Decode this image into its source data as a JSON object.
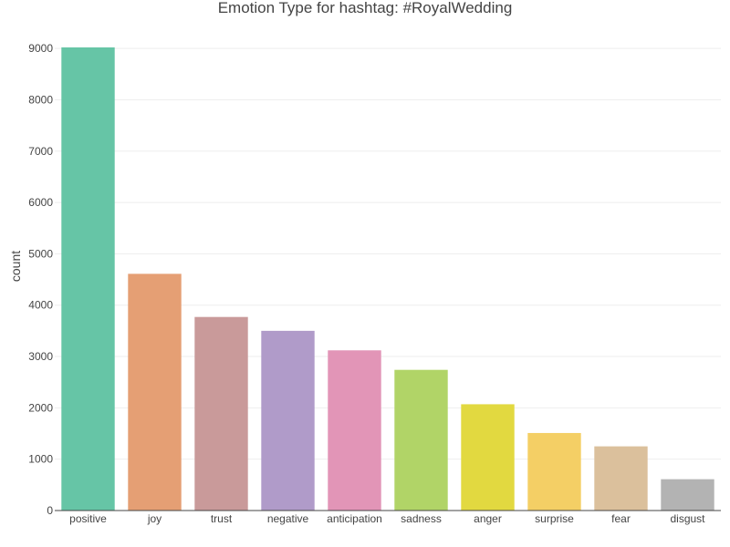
{
  "chart_data": {
    "type": "bar",
    "title": "Emotion Type for hashtag: #RoyalWedding",
    "xlabel": "",
    "ylabel": "count",
    "categories": [
      "positive",
      "joy",
      "trust",
      "negative",
      "anticipation",
      "sadness",
      "anger",
      "surprise",
      "fear",
      "disgust"
    ],
    "values": [
      9020,
      4610,
      3770,
      3500,
      3120,
      2740,
      2070,
      1510,
      1250,
      610
    ],
    "colors": [
      "#66c5a6",
      "#e59f74",
      "#c99a9a",
      "#b09bc9",
      "#e295b7",
      "#b1d467",
      "#e2d940",
      "#f4cf65",
      "#dbc09c",
      "#b3b3b3"
    ],
    "ylim": [
      0,
      9020
    ],
    "yticks": [
      0,
      1000,
      2000,
      3000,
      4000,
      5000,
      6000,
      7000,
      8000,
      9000
    ],
    "grid": true,
    "legend": "none"
  }
}
